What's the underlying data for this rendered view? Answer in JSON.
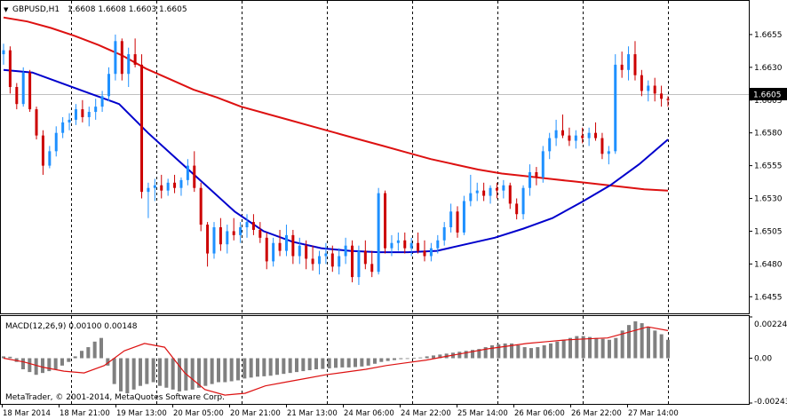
{
  "main_panel": {
    "symbol_label": "GBPUSD,H1",
    "ohlc_label": "1.6608 1.6608 1.6603 1.6605",
    "price_ticks": [
      "1.6655",
      "1.6630",
      "1.6605",
      "1.6580",
      "1.6555",
      "1.6530",
      "1.6505",
      "1.6480",
      "1.6455"
    ],
    "current_price": "1.6605"
  },
  "macd_panel": {
    "label": "MACD(12,26,9) 0.00100 0.00148",
    "ticks": [
      "0.00224",
      "0.00",
      "-0.00243"
    ]
  },
  "copyright": "MetaTrader, © 2001-2014, MetaQuotes Software Corp.",
  "time_axis": [
    "18 Mar 2014",
    "18 Mar 21:00",
    "19 Mar 13:00",
    "20 Mar 05:00",
    "20 Mar 21:00",
    "21 Mar 13:00",
    "24 Mar 06:00",
    "24 Mar 22:00",
    "25 Mar 14:00",
    "26 Mar 06:00",
    "26 Mar 22:00",
    "27 Mar 14:00"
  ],
  "chart_data": {
    "type": "candlestick",
    "price_range": [
      1.6443,
      1.668
    ],
    "macd_range": [
      -0.00243,
      0.00224
    ],
    "colors": {
      "bull_candle": "#1e90ff",
      "bear_candle": "#cc0000",
      "ma_slow": "#dd1111",
      "ma_fast": "#0000cc",
      "macd_hist": "#808080",
      "macd_signal": "#dd1111",
      "grid": "#000000",
      "current_price_line": "#c0c0c0"
    },
    "candles": [
      [
        1.664,
        1.6648,
        1.6632,
        1.6643
      ],
      [
        1.6643,
        1.6646,
        1.661,
        1.6615
      ],
      [
        1.6615,
        1.6618,
        1.6598,
        1.6602
      ],
      [
        1.6602,
        1.663,
        1.66,
        1.6626
      ],
      [
        1.6626,
        1.6628,
        1.6596,
        1.6598
      ],
      [
        1.6598,
        1.66,
        1.6575,
        1.6578
      ],
      [
        1.6578,
        1.6582,
        1.6548,
        1.6555
      ],
      [
        1.6555,
        1.657,
        1.6553,
        1.6566
      ],
      [
        1.6566,
        1.6585,
        1.6562,
        1.658
      ],
      [
        1.658,
        1.6592,
        1.6576,
        1.6588
      ],
      [
        1.6588,
        1.6595,
        1.6582,
        1.659
      ],
      [
        1.659,
        1.6602,
        1.6586,
        1.6598
      ],
      [
        1.6598,
        1.6605,
        1.6588,
        1.6592
      ],
      [
        1.6592,
        1.66,
        1.6585,
        1.6596
      ],
      [
        1.6596,
        1.6606,
        1.659,
        1.66
      ],
      [
        1.66,
        1.6612,
        1.6596,
        1.6608
      ],
      [
        1.6608,
        1.663,
        1.6604,
        1.6625
      ],
      [
        1.6625,
        1.6655,
        1.662,
        1.665
      ],
      [
        1.665,
        1.6652,
        1.662,
        1.6625
      ],
      [
        1.6625,
        1.6645,
        1.6615,
        1.664
      ],
      [
        1.664,
        1.6652,
        1.663,
        1.6632
      ],
      [
        1.6632,
        1.664,
        1.653,
        1.6535
      ],
      [
        1.6535,
        1.6542,
        1.6515,
        1.6538
      ],
      [
        1.6538,
        1.6545,
        1.6528,
        1.654
      ],
      [
        1.654,
        1.6548,
        1.653,
        1.6536
      ],
      [
        1.6536,
        1.6545,
        1.6532,
        1.6542
      ],
      [
        1.6542,
        1.6548,
        1.6534,
        1.6538
      ],
      [
        1.6538,
        1.6546,
        1.6532,
        1.6544
      ],
      [
        1.6544,
        1.656,
        1.654,
        1.6555
      ],
      [
        1.6555,
        1.6566,
        1.6535,
        1.6538
      ],
      [
        1.6538,
        1.6542,
        1.6505,
        1.651
      ],
      [
        1.651,
        1.6512,
        1.6478,
        1.6488
      ],
      [
        1.6488,
        1.6512,
        1.6484,
        1.6508
      ],
      [
        1.6508,
        1.6515,
        1.649,
        1.6495
      ],
      [
        1.6495,
        1.651,
        1.6488,
        1.6505
      ],
      [
        1.6505,
        1.6515,
        1.6498,
        1.6502
      ],
      [
        1.6502,
        1.6512,
        1.6496,
        1.6508
      ],
      [
        1.6508,
        1.6518,
        1.65,
        1.6512
      ],
      [
        1.6512,
        1.6518,
        1.6502,
        1.6506
      ],
      [
        1.6506,
        1.6512,
        1.6496,
        1.65
      ],
      [
        1.65,
        1.6504,
        1.6476,
        1.6482
      ],
      [
        1.6482,
        1.65,
        1.6478,
        1.6496
      ],
      [
        1.6496,
        1.6506,
        1.6486,
        1.649
      ],
      [
        1.649,
        1.651,
        1.6486,
        1.6502
      ],
      [
        1.6502,
        1.6506,
        1.648,
        1.6486
      ],
      [
        1.6486,
        1.65,
        1.648,
        1.6494
      ],
      [
        1.6494,
        1.6498,
        1.6476,
        1.6484
      ],
      [
        1.6484,
        1.6494,
        1.6475,
        1.648
      ],
      [
        1.648,
        1.649,
        1.6472,
        1.6486
      ],
      [
        1.6486,
        1.6496,
        1.648,
        1.6488
      ],
      [
        1.6488,
        1.6494,
        1.6474,
        1.6478
      ],
      [
        1.6478,
        1.6492,
        1.6472,
        1.6486
      ],
      [
        1.6486,
        1.65,
        1.648,
        1.6494
      ],
      [
        1.6494,
        1.6498,
        1.6466,
        1.647
      ],
      [
        1.647,
        1.6494,
        1.6464,
        1.649
      ],
      [
        1.649,
        1.6498,
        1.6476,
        1.648
      ],
      [
        1.648,
        1.649,
        1.647,
        1.6474
      ],
      [
        1.6474,
        1.6538,
        1.6472,
        1.6534
      ],
      [
        1.6534,
        1.6536,
        1.6488,
        1.6492
      ],
      [
        1.6492,
        1.6502,
        1.6486,
        1.6496
      ],
      [
        1.6496,
        1.6504,
        1.649,
        1.6498
      ],
      [
        1.6498,
        1.6504,
        1.6488,
        1.6492
      ],
      [
        1.6492,
        1.65,
        1.6486,
        1.6496
      ],
      [
        1.6496,
        1.6504,
        1.6488,
        1.649
      ],
      [
        1.649,
        1.6498,
        1.6482,
        1.6486
      ],
      [
        1.6486,
        1.6496,
        1.6482,
        1.6492
      ],
      [
        1.6492,
        1.6502,
        1.6488,
        1.6498
      ],
      [
        1.6498,
        1.6512,
        1.6494,
        1.6508
      ],
      [
        1.6508,
        1.6526,
        1.6504,
        1.652
      ],
      [
        1.652,
        1.6524,
        1.65,
        1.6504
      ],
      [
        1.6504,
        1.6532,
        1.6502,
        1.6528
      ],
      [
        1.6528,
        1.6548,
        1.6524,
        1.6534
      ],
      [
        1.6534,
        1.6542,
        1.6528,
        1.6536
      ],
      [
        1.6536,
        1.6542,
        1.6528,
        1.6532
      ],
      [
        1.6532,
        1.654,
        1.6526,
        1.6538
      ],
      [
        1.6538,
        1.6542,
        1.653,
        1.6536
      ],
      [
        1.6536,
        1.6544,
        1.653,
        1.654
      ],
      [
        1.654,
        1.6542,
        1.6522,
        1.6526
      ],
      [
        1.6526,
        1.653,
        1.6514,
        1.6518
      ],
      [
        1.6518,
        1.654,
        1.6514,
        1.6538
      ],
      [
        1.6538,
        1.6556,
        1.6532,
        1.655
      ],
      [
        1.655,
        1.6554,
        1.654,
        1.6546
      ],
      [
        1.6546,
        1.657,
        1.6542,
        1.6566
      ],
      [
        1.6566,
        1.658,
        1.656,
        1.6576
      ],
      [
        1.6576,
        1.659,
        1.657,
        1.6582
      ],
      [
        1.6582,
        1.6594,
        1.6576,
        1.6578
      ],
      [
        1.6578,
        1.6584,
        1.657,
        1.6574
      ],
      [
        1.6574,
        1.6582,
        1.6568,
        1.6578
      ],
      [
        1.6578,
        1.6584,
        1.6572,
        1.6576
      ],
      [
        1.6576,
        1.6584,
        1.657,
        1.658
      ],
      [
        1.658,
        1.6588,
        1.6574,
        1.6576
      ],
      [
        1.6576,
        1.658,
        1.656,
        1.6564
      ],
      [
        1.6564,
        1.657,
        1.6556,
        1.6566
      ],
      [
        1.6566,
        1.664,
        1.6564,
        1.6632
      ],
      [
        1.6632,
        1.6642,
        1.6622,
        1.6628
      ],
      [
        1.6628,
        1.6646,
        1.662,
        1.664
      ],
      [
        1.664,
        1.665,
        1.662,
        1.6624
      ],
      [
        1.6624,
        1.6628,
        1.6608,
        1.6612
      ],
      [
        1.6612,
        1.662,
        1.6604,
        1.6616
      ],
      [
        1.6616,
        1.6622,
        1.6604,
        1.661
      ],
      [
        1.661,
        1.6616,
        1.66,
        1.6606
      ],
      [
        1.6606,
        1.6608,
        1.66,
        1.6605
      ]
    ],
    "ma_slow": [
      1.6668,
      1.6665,
      1.666,
      1.6654,
      1.6647,
      1.6639,
      1.6629,
      1.6621,
      1.6613,
      1.6607,
      1.66,
      1.6595,
      1.659,
      1.6585,
      1.658,
      1.6575,
      1.657,
      1.6565,
      1.656,
      1.6556,
      1.6552,
      1.6549,
      1.6547,
      1.6545,
      1.6543,
      1.6541,
      1.6539,
      1.6537,
      1.6536
    ],
    "ma_fast": [
      1.6628,
      1.6626,
      1.6618,
      1.661,
      1.6602,
      1.658,
      1.656,
      1.654,
      1.652,
      1.6505,
      1.6497,
      1.6492,
      1.649,
      1.6489,
      1.6489,
      1.649,
      1.6495,
      1.65,
      1.6507,
      1.6515,
      1.6527,
      1.654,
      1.6556,
      1.6575
    ],
    "macd_hist": [
      0.0001,
      8e-05,
      -0.0002,
      -0.0006,
      -0.00075,
      -0.0009,
      -0.0008,
      -0.0007,
      -0.0006,
      -0.0004,
      -0.0002,
      0.0001,
      0.0004,
      0.0006,
      0.0009,
      0.0011,
      -0.0004,
      -0.0014,
      -0.0018,
      -0.0019,
      -0.0017,
      -0.0015,
      -0.0014,
      -0.0013,
      -0.0015,
      -0.0016,
      -0.0017,
      -0.0018,
      -0.00175,
      -0.0017,
      -0.0016,
      -0.0015,
      -0.0014,
      -0.0013,
      -0.0013,
      -0.00125,
      -0.0012,
      -0.0011,
      -0.00105,
      -0.001,
      -0.00098,
      -0.00095,
      -0.0009,
      -0.00085,
      -0.0008,
      -0.00075,
      -0.0007,
      -0.00065,
      -0.0006,
      -0.00058,
      -0.00055,
      -0.00052,
      -0.0005,
      -0.0005,
      -0.00048,
      -0.00045,
      -0.0004,
      -0.0003,
      -0.0002,
      -0.00015,
      -0.0001,
      -5e-05,
      0.0,
      2e-05,
      4e-05,
      0.0001,
      0.00015,
      0.0002,
      0.00025,
      0.0003,
      0.00035,
      0.0004,
      0.00045,
      0.0005,
      0.0006,
      0.0007,
      0.00075,
      0.0008,
      0.0008,
      0.0007,
      0.0006,
      0.00055,
      0.0006,
      0.0007,
      0.0008,
      0.0009,
      0.001,
      0.0011,
      0.0012,
      0.0012,
      0.00115,
      0.0011,
      0.00105,
      0.001,
      0.0011,
      0.0015,
      0.0018,
      0.002,
      0.0019,
      0.0017,
      0.0015,
      0.0013,
      0.001
    ],
    "macd_signal": [
      0.0,
      -0.0002,
      -0.0005,
      -0.0007,
      -0.0008,
      -0.0004,
      0.0004,
      0.0008,
      0.0006,
      -0.0008,
      -0.0017,
      -0.002,
      -0.0019,
      -0.0015,
      -0.0013,
      -0.0011,
      -0.0009,
      -0.00075,
      -0.0006,
      -0.0004,
      -0.00025,
      -0.0001,
      0.0001,
      0.0003,
      0.0005,
      0.00065,
      0.0008,
      0.0009,
      0.001,
      0.00105,
      0.0011,
      0.0014,
      0.0017,
      0.0015
    ]
  }
}
